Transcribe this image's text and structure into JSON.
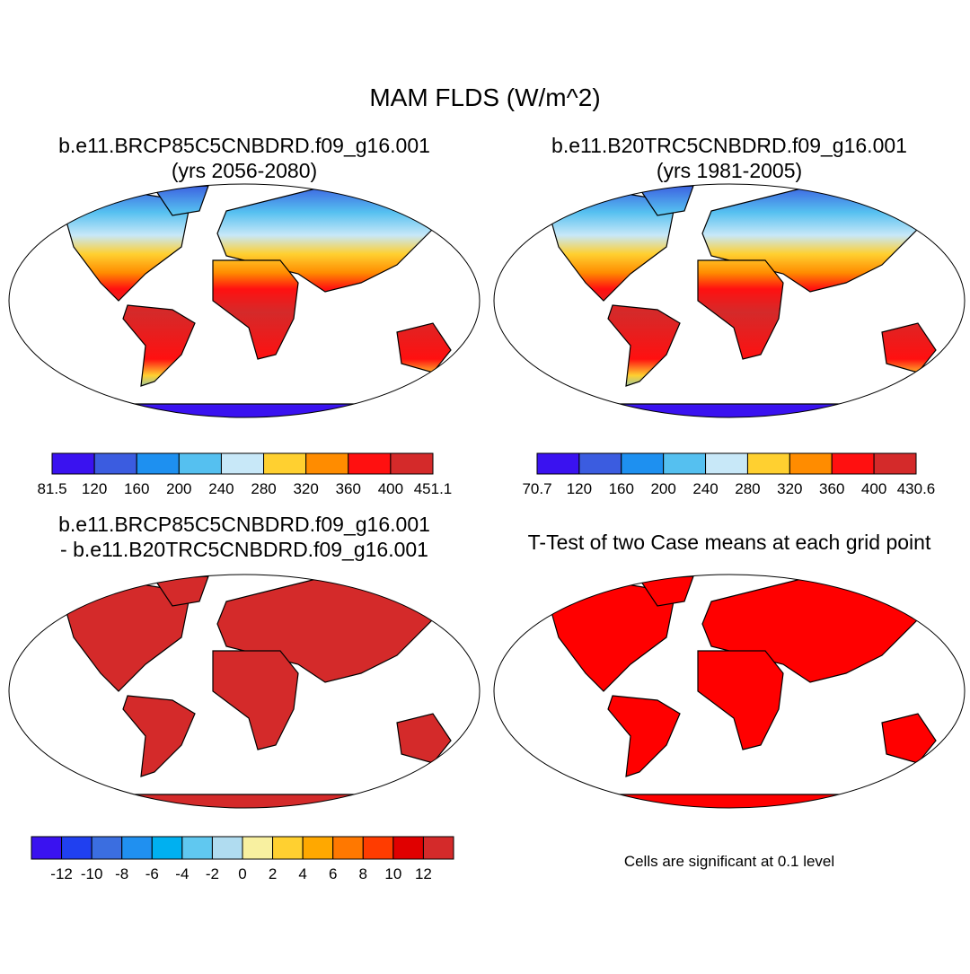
{
  "title": "MAM FLDS (W/m^2)",
  "panels": [
    {
      "title": [
        "b.e11.BRCP85C5CNBDRD.f09_g16.001",
        "(yrs 2056-2080)"
      ],
      "colorbar": {
        "colors": [
          "#3a12f0",
          "#3b5ce0",
          "#1e90f0",
          "#55c0f0",
          "#c8e8f8",
          "#ffd030",
          "#ff8c00",
          "#ff1010",
          "#d42a2a"
        ],
        "labels": [
          "81.5",
          "120",
          "160",
          "200",
          "240",
          "280",
          "320",
          "360",
          "400",
          "451.1"
        ]
      }
    },
    {
      "title": [
        "b.e11.B20TRC5CNBDRD.f09_g16.001",
        "(yrs 1981-2005)"
      ],
      "colorbar": {
        "colors": [
          "#3a12f0",
          "#3b5ce0",
          "#1e90f0",
          "#55c0f0",
          "#c8e8f8",
          "#ffd030",
          "#ff8c00",
          "#ff1010",
          "#d42a2a"
        ],
        "labels": [
          "70.7",
          "120",
          "160",
          "200",
          "240",
          "280",
          "320",
          "360",
          "400",
          "430.6"
        ]
      }
    },
    {
      "title": [
        "b.e11.BRCP85C5CNBDRD.f09_g16.001",
        "- b.e11.B20TRC5CNBDRD.f09_g16.001"
      ],
      "colorbar": {
        "colors": [
          "#3a12f0",
          "#2040f0",
          "#3b6ee0",
          "#2090f0",
          "#00b0f0",
          "#60c8f0",
          "#b0dcf0",
          "#f8f0a0",
          "#ffd030",
          "#ffa800",
          "#ff7800",
          "#ff3c00",
          "#e00000",
          "#d42a2a"
        ],
        "labels": [
          "-12",
          "-10",
          "-8",
          "-6",
          "-4",
          "-2",
          "0",
          "2",
          "4",
          "6",
          "8",
          "10",
          "12"
        ]
      }
    },
    {
      "title": [
        "T-Test of two Case means at each grid point"
      ],
      "note": "Cells are significant at 0.1 level"
    }
  ]
}
